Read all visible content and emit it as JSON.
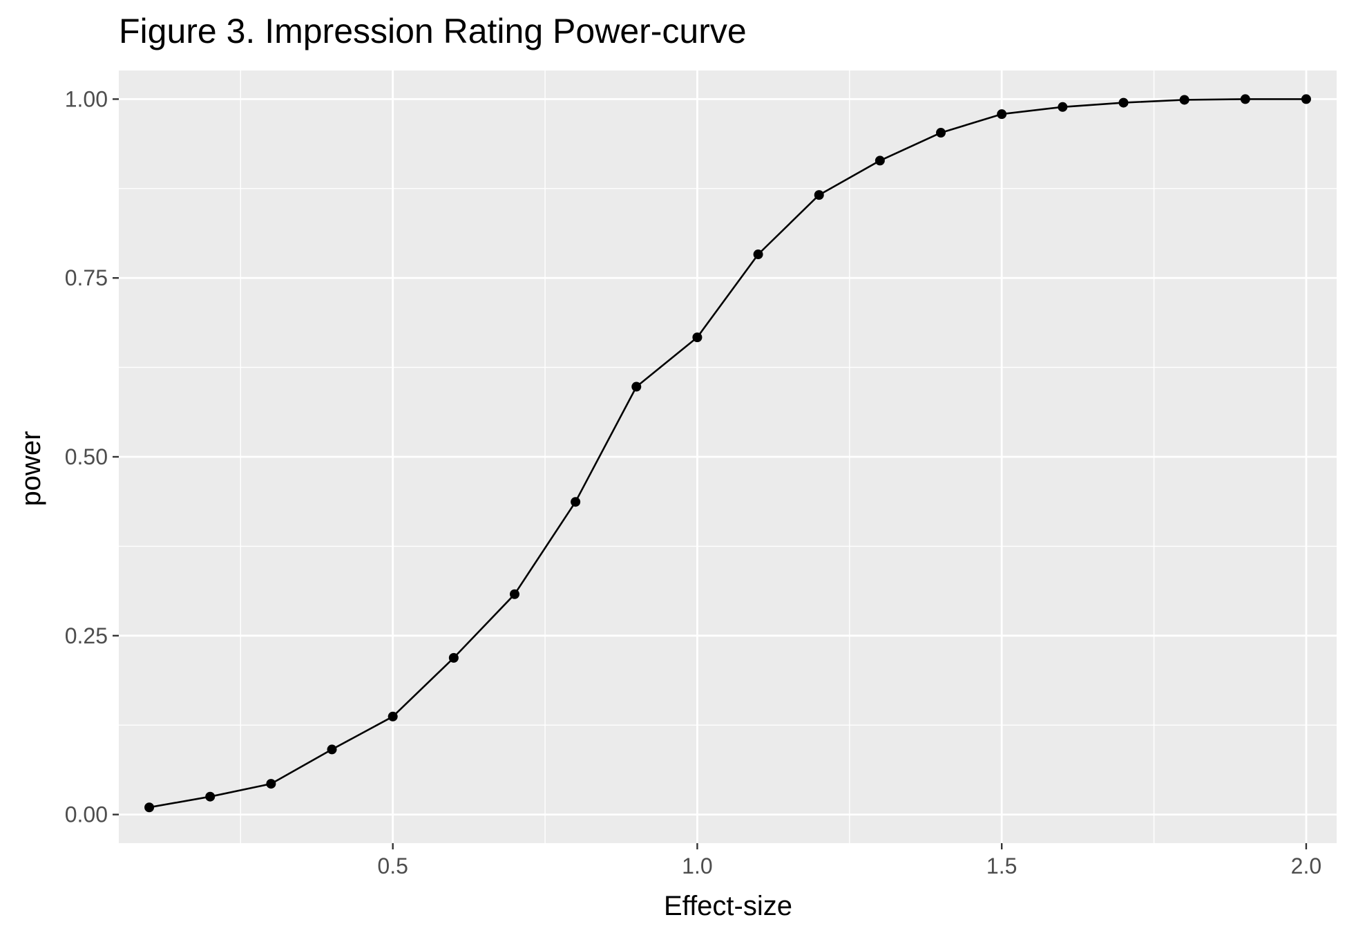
{
  "chart_data": {
    "type": "line",
    "title": "Figure 3. Impression Rating Power-curve",
    "xlabel": "Effect-size",
    "ylabel": "power",
    "xlim": [
      0.05,
      2.05
    ],
    "ylim": [
      -0.04,
      1.04
    ],
    "x_ticks": [
      0.5,
      1.0,
      1.5,
      2.0
    ],
    "x_tick_labels": [
      "0.5",
      "1.0",
      "1.5",
      "2.0"
    ],
    "x_minor_ticks": [
      0.25,
      0.75,
      1.25,
      1.75
    ],
    "y_ticks": [
      0.0,
      0.25,
      0.5,
      0.75,
      1.0
    ],
    "y_tick_labels": [
      "0.00",
      "0.25",
      "0.50",
      "0.75",
      "1.00"
    ],
    "y_minor_ticks": [
      0.125,
      0.375,
      0.625,
      0.875
    ],
    "grid": true,
    "legend": "none",
    "series": [
      {
        "x": [
          0.1,
          0.2,
          0.3,
          0.4,
          0.5,
          0.6,
          0.7,
          0.8,
          0.9,
          1.0,
          1.1,
          1.2,
          1.3,
          1.4,
          1.5,
          1.6,
          1.7,
          1.8,
          1.9,
          2.0
        ],
        "values": [
          0.01,
          0.025,
          0.043,
          0.091,
          0.137,
          0.219,
          0.308,
          0.437,
          0.598,
          0.667,
          0.783,
          0.866,
          0.914,
          0.953,
          0.979,
          0.989,
          0.995,
          0.999,
          1.0,
          1.0
        ]
      }
    ]
  },
  "colors": {
    "panel_background": "#ebebeb",
    "grid_major": "#ffffff",
    "grid_minor": "#ffffff",
    "line": "#000000",
    "point": "#000000",
    "tick_label": "#4d4d4d",
    "tick_mark": "#333333"
  }
}
